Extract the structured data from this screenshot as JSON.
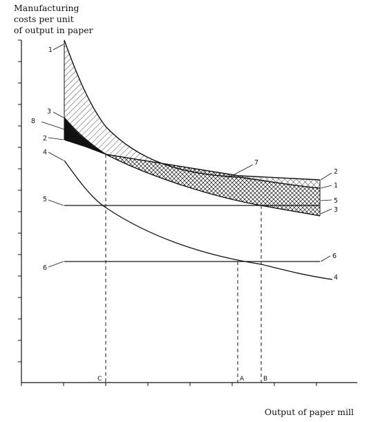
{
  "chart_data": {
    "type": "line",
    "ylabel": [
      "Manufacturing",
      "costs per unit",
      "of output in paper"
    ],
    "xlabel": "Output of paper mill",
    "x_markers": [
      "C",
      "A",
      "B"
    ],
    "series": [
      {
        "label": "1",
        "values": []
      },
      {
        "label": "2",
        "values": []
      },
      {
        "label": "3",
        "values": []
      },
      {
        "label": "4",
        "values": []
      },
      {
        "label": "5",
        "values": []
      },
      {
        "label": "6",
        "values": []
      }
    ],
    "annotations": [
      "7",
      "8"
    ]
  }
}
